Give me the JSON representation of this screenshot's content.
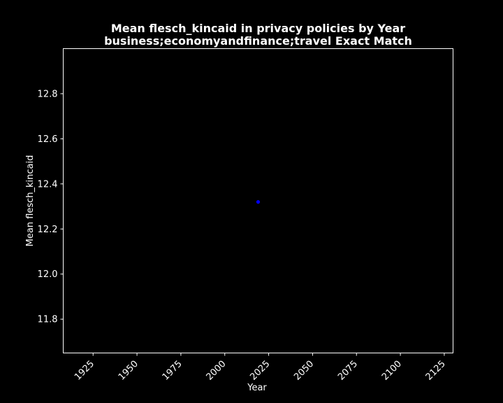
{
  "chart_data": {
    "type": "scatter",
    "title": "Mean flesch_kincaid in privacy policies by Year",
    "subtitle": "business;economyandfinance;travel Exact Match",
    "xlabel": "Year",
    "ylabel": "Mean flesch_kincaid",
    "xlim": [
      1908,
      2130
    ],
    "ylim": [
      11.65,
      13.0
    ],
    "x_ticks": [
      1925,
      1950,
      1975,
      2000,
      2025,
      2050,
      2075,
      2100,
      2125
    ],
    "y_ticks": [
      11.8,
      12.0,
      12.2,
      12.4,
      12.6,
      12.8
    ],
    "grid": false,
    "background_color": "#000000",
    "axes_color": "#ffffff",
    "point_color": "#0000ff",
    "points": [
      {
        "x": 2019,
        "y": 12.32
      }
    ]
  }
}
